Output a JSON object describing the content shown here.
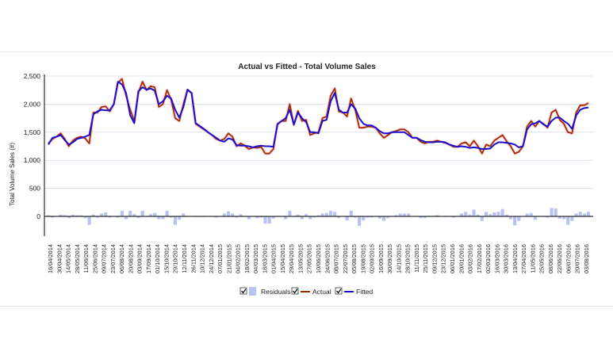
{
  "chart_data": {
    "type": "line",
    "title": "Actual vs Fitted - Total Volume Sales",
    "ylabel": "Total Volume Sales (#)",
    "xlabel": "",
    "ylim": [
      -250,
      2500
    ],
    "yticks": [
      0,
      500,
      1000,
      1500,
      2000,
      2500
    ],
    "ytick_labels": [
      "0",
      "500",
      "1,000",
      "1,500",
      "2,000",
      "2,500"
    ],
    "x_tick_labels": [
      "16/04/2014",
      "30/04/2014",
      "14/05/2014",
      "28/05/2014",
      "11/06/2014",
      "25/06/2014",
      "09/07/2014",
      "23/07/2014",
      "06/08/2014",
      "20/08/2014",
      "03/09/2014",
      "17/09/2014",
      "01/10/2014",
      "15/10/2014",
      "29/10/2014",
      "12/11/2014",
      "26/11/2014",
      "10/12/2014",
      "24/12/2014",
      "07/01/2015",
      "21/01/2015",
      "04/02/2015",
      "18/02/2015",
      "04/03/2015",
      "18/03/2015",
      "01/04/2015",
      "15/04/2015",
      "29/04/2015",
      "13/05/2015",
      "27/05/2015",
      "10/06/2015",
      "24/06/2015",
      "08/07/2015",
      "22/07/2015",
      "05/08/2015",
      "19/08/2015",
      "02/09/2015",
      "16/09/2015",
      "30/09/2015",
      "14/10/2015",
      "28/10/2015",
      "11/11/2015",
      "25/11/2015",
      "09/12/2015",
      "23/12/2015",
      "06/01/2016",
      "20/01/2016",
      "03/02/2016",
      "17/02/2016",
      "02/03/2016",
      "16/03/2016",
      "30/03/2016",
      "13/04/2016",
      "27/04/2016",
      "11/05/2016",
      "25/05/2016",
      "08/06/2016",
      "22/06/2016",
      "06/07/2016",
      "20/07/2016",
      "03/08/2016"
    ],
    "series": [
      {
        "name": "Actual",
        "color": "#a52a00",
        "values": [
          1300,
          1380,
          1420,
          1480,
          1380,
          1250,
          1350,
          1400,
          1420,
          1390,
          1300,
          1850,
          1850,
          1950,
          1960,
          1870,
          2000,
          2380,
          2450,
          2150,
          1900,
          1700,
          2200,
          2400,
          2250,
          2320,
          2300,
          1950,
          2000,
          2250,
          2080,
          1750,
          1700,
          2000,
          2250,
          2200,
          1650,
          1600,
          1550,
          1500,
          1450,
          1380,
          1350,
          1380,
          1480,
          1420,
          1250,
          1300,
          1260,
          1200,
          1230,
          1220,
          1240,
          1120,
          1120,
          1200,
          1650,
          1700,
          1700,
          2000,
          1630,
          1880,
          1700,
          1720,
          1450,
          1480,
          1500,
          1750,
          1780,
          2150,
          2280,
          1870,
          1850,
          1780,
          2100,
          1900,
          1580,
          1580,
          1600,
          1600,
          1580,
          1480,
          1400,
          1450,
          1500,
          1520,
          1550,
          1550,
          1500,
          1400,
          1400,
          1330,
          1300,
          1330,
          1330,
          1350,
          1330,
          1310,
          1280,
          1240,
          1240,
          1300,
          1320,
          1250,
          1350,
          1250,
          1120,
          1280,
          1250,
          1350,
          1400,
          1450,
          1340,
          1250,
          1120,
          1150,
          1250,
          1600,
          1700,
          1600,
          1700,
          1650,
          1580,
          1850,
          1900,
          1720,
          1650,
          1500,
          1480,
          1850,
          1980,
          1980,
          2020
        ]
      },
      {
        "name": "Fitted",
        "color": "#1a10cc",
        "values": [
          1280,
          1400,
          1420,
          1450,
          1360,
          1280,
          1320,
          1380,
          1400,
          1420,
          1450,
          1820,
          1870,
          1900,
          1890,
          1890,
          2000,
          2400,
          2350,
          2200,
          1800,
          1660,
          2230,
          2300,
          2260,
          2280,
          2240,
          2000,
          2050,
          2150,
          2100,
          1900,
          1760,
          1950,
          2260,
          2200,
          1660,
          1610,
          1560,
          1500,
          1450,
          1400,
          1350,
          1330,
          1390,
          1370,
          1270,
          1260,
          1260,
          1250,
          1230,
          1250,
          1260,
          1250,
          1250,
          1240,
          1640,
          1700,
          1750,
          1900,
          1640,
          1850,
          1750,
          1680,
          1500,
          1500,
          1480,
          1700,
          1720,
          2050,
          2200,
          1900,
          1850,
          1850,
          2000,
          1920,
          1750,
          1650,
          1620,
          1620,
          1580,
          1520,
          1480,
          1480,
          1500,
          1500,
          1500,
          1500,
          1450,
          1400,
          1400,
          1360,
          1330,
          1320,
          1320,
          1330,
          1330,
          1320,
          1280,
          1260,
          1240,
          1250,
          1240,
          1220,
          1230,
          1220,
          1200,
          1200,
          1210,
          1280,
          1320,
          1320,
          1310,
          1300,
          1280,
          1230,
          1250,
          1550,
          1640,
          1660,
          1700,
          1640,
          1600,
          1700,
          1760,
          1760,
          1700,
          1650,
          1560,
          1800,
          1900,
          1930,
          1940
        ]
      },
      {
        "name": "Residuals",
        "color": "#b9c3f2",
        "values": [
          20,
          -20,
          0,
          30,
          20,
          -30,
          30,
          20,
          20,
          -30,
          -150,
          30,
          -20,
          50,
          70,
          -20,
          0,
          -20,
          100,
          -50,
          100,
          40,
          -30,
          100,
          -10,
          40,
          60,
          -50,
          -50,
          100,
          -20,
          -150,
          -60,
          50,
          -10,
          0,
          -10,
          -10,
          -10,
          0,
          0,
          -20,
          0,
          50,
          90,
          50,
          -20,
          40,
          0,
          -50,
          0,
          -30,
          -20,
          -130,
          -130,
          -40,
          10,
          0,
          -50,
          100,
          -10,
          30,
          -50,
          40,
          -50,
          -20,
          20,
          50,
          60,
          100,
          80,
          -30,
          0,
          -70,
          100,
          -20,
          -170,
          -70,
          -20,
          -20,
          0,
          -40,
          -80,
          -30,
          0,
          20,
          50,
          50,
          50,
          0,
          0,
          -30,
          -30,
          10,
          10,
          20,
          0,
          -10,
          0,
          -20,
          0,
          50,
          80,
          30,
          120,
          30,
          -80,
          80,
          40,
          70,
          80,
          130,
          30,
          -50,
          -160,
          -80,
          0,
          50,
          60,
          -60,
          0,
          10,
          -20,
          150,
          140,
          -40,
          -50,
          -150,
          -80,
          50,
          80,
          50,
          80
        ]
      }
    ],
    "legend": [
      "Residuals",
      "Actual",
      "Fitted"
    ],
    "legend_position": "bottom",
    "grid": true
  }
}
